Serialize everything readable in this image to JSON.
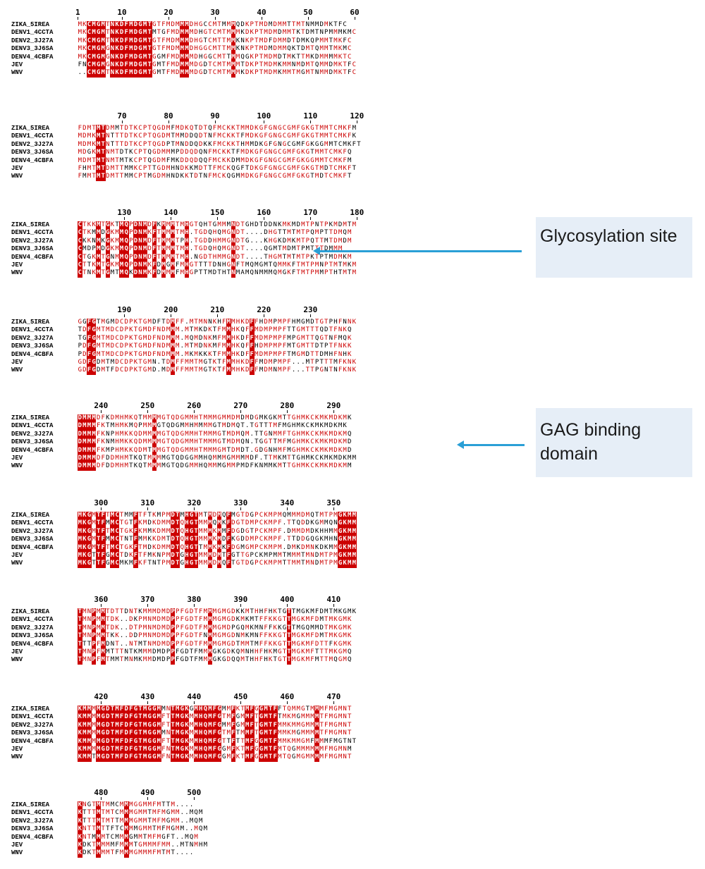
{
  "names": [
    "ZIKA_5IREA",
    "DENV1_4CCTA",
    "DENV2_3J27A",
    "DENV3_3J6SA",
    "DENV4_4CBFA",
    "JEV",
    "WNV"
  ],
  "blocks": [
    {
      "ticks": [
        1,
        10,
        20,
        30,
        40,
        50,
        60
      ],
      "start": 1,
      "rows": [
        "MKCMGMTNKDFMDGMTGTFMDMMMDHGCCMTMMMQDKPTMDMDMMTTMTNMMDMKTFC",
        "MKCMGMTNKDFMDGMTMTGFMDMMMDHGTCMTMMMKDKPTMDMDMMTKTDMTNPMMMKMC",
        "MKCMGMTNKDFMDGMTGTFMDMMMDHGTCMTTMMKNKPTMDFDMMDTDMKQPMMTMKFC",
        "MKCMGMGNKDFMDGMTGTFMDMMMDHGGCMTTMMKNKPTMDMDMMQKTDMTQMMTMKMC",
        "MKCMGMGNKDFMDGMTGGMFMDMMMDHGGCMTTMMQGKPTMDMDTMKTTMKDMMMMKTC",
        "FNCMGMGNKDFMDGMTGMTFMDMMMDGDTCMTMMMTDKPTMDMKMMNMDMTQMMDMKTFC",
        "..CMGMTNKDFMDGMTGMTFMDMMMDGDTCMTMMMKDKPTMDMKMMTMGMTNMMDMKTFC"
      ]
    },
    {
      "ticks": [
        70,
        80,
        90,
        100,
        110,
        120
      ],
      "start": 61,
      "rows": [
        "FDMTMTDMMTDTKCPTQGDMFMDKQTDTQFMCKKTMMDKGFGNGCGMFGKGTMMTCMKFM",
        "MDMKMTNTTTDTKCPTQGDMTMMDDQDTNFMCKKTFMDKGFGNGCGMFGKGTMMTCMKFK",
        "MDMKMTNTTTDTKCPTQGDPTMNDDQDKKFMCKKTHMMDKGFGNGCGMFGKGGMMTCMKFT",
        "MDGKMTNMTDTKCPTQGDMMMPDDQDQNFMCKKTFMDKGFGNGCGMFGKGTMMTCMKFQ",
        "MDMTMTNMTMTKCPTQGDMFMKDDQDQQFMCKKDMMDKGFGNGCGMFGKGGMMTCMKFM",
        "FHMTMTDMTTMMKCPTTGDMHNDKKMDTTFMCKQGFTDKGFGNGCGMFGKGTMDTCMKFT",
        "FMMTMTDMTTMMCPTMGDMHNDKKTDTNFMCKQGMMDKGFGNGCGMFGKGTMDTCMKFT"
      ]
    },
    {
      "ticks": [
        130,
        140,
        150,
        160,
        170,
        180
      ],
      "start": 121,
      "rows": [
        "CTKKMTGKTMQPDNMDFKMMMTMHGTQHTGMMMNDTGHDTDDNKMKMDMTPNTPKMDMTM",
        "CTKMMDGKMMQPDNMKFTMMMTMH.TGDQHQMGNDT....DHGTTMTMTPQMPTTDMQM",
        "CKKNMKGKMMQPDNMDFTMMMTPH.TGDDHMMGNDTG...KHGKDMKMTPQTTMTDMDM",
        "CMDPMDGKMMQPDNMDFTMMMTMH.TGDQHQMGNDT....QGMTMDMTPMTTTDMMM",
        "CTGKMTGNMMQPDNMDFTMMMTMH.NGDTHMMGNDT....THGMTMTMTPKTPTMDMKM",
        "CTTKMTGKMMQPDNMKFDMGMFMHGTTTTDNHGNFTMQMGMTQMMKFTMTPMNPTMTMKM",
        "CTNKMTGMTMQKDNMKFDMMMFMHGPTTMDTHTNMAMQNMMMQMGKFTMTPMMPTHTMTM"
      ]
    },
    {
      "ticks": [
        190,
        200,
        210,
        220,
        230
      ],
      "start": 181,
      "rows": [
        "GGFGTMGMDCDPKTGMDFTDMFF.MTMNNKHFMMHKDFFHDMPMPFHMGMDTGTPHFNNK",
        "TDFGMTMDCDPKTGMDFNDMMM.MTMKDKTFMMHKQFFMDMPMPFTTGMTTTQDTFNKQ",
        "TGFGMTMDCDPKTGMDFNDMMM.MQMDNKMFMMHKDFFMDMPMPFMPGMTTQGTNFMQK",
        "PDFGMTMDCDPKTGMDFNDMMM.MTMDNKMFMMHKQFFHDMPMPFMTGMTTDTPTFNKK",
        "PDFGMTMDCDPKTGMDFNDMMM.MKMKKKTFMMHKDFFMDMPMPFTMGMDTTDMHFNHK",
        "GDFGDMTMDCDPKTGMN.TDMFFMMTMGTKTFMMHKDFFMDMPMPF...MTPTTTMFKNK",
        "GDFGDMTFDCDPKTGMD.MDMFFMMTMGTKTFMMHKDFFMDMNMPF...TTPGNTNFKNK"
      ]
    },
    {
      "ticks": [
        240,
        250,
        260,
        270,
        280,
        290
      ],
      "start": 236,
      "rows": [
        "DMMMDFKDMHMKQTMMMMGTQDGMMHTMMMGMMDMDMDGMKGKMTTGHMKCKMKMDKMK",
        "DMMMFKTMHMKMQPMMMGTQDGMMHMMMMGTMDMQT.TGTTTMFMGHMKCKMKMDKMK",
        "DMMMFKNPHMKKQDMMMMGTQDGMMHTMMMGTMDMQM.TTGNMMFTGHMKCKMKMDKMQ",
        "DMMMFKNMHMKKQDMMMMGTQDGMMHTMMMGTMDMQN.TGGTTMFMGHMKCKMKMDKMD",
        "DMMMFKMPHMKKQDMTMMGTQDGMMHTMMMGMTDMDT.GDGNHMFMGHMKCKMKMDKMD",
        "DMMMDFDDMHMTKQTMMMMGTQDGGMMHQMMMGMMMMDF.TTMKMTTGHMKCKMKMDKMM",
        "DMMMDFDDMHMTKQTMMMMGTQDGMMHQMMMGMMPMDFKNMMKMTTGHMKCKMKMDKMM"
      ]
    },
    {
      "ticks": [
        300,
        310,
        320,
        330,
        340,
        350
      ],
      "start": 296,
      "rows": [
        "MKGMTFTMCTMMFTFTKMPMDTMHGTMTMDMQFMGTDGPCKMPMQMMMDMQTMTPMGKMM",
        "MKGMTFMMCTGTFKMDKDMMDTQHGTMMMQMKFDGTDMPCKMPF.TTQDDKGMMQNGKMM",
        "MKGMTFTMCTGKFKMMKDMMDTQHGTMMMKMMFDGDGTPCKMPF.DMMDMDKHHMMGKMM",
        "MKGMTFMMCTNTFMMKKDMTDTQHGTMMMKMDFKGDDMPCKMPF.TTDDGQGKMHNGKMM",
        "MKGMTFTMCTGKFTMDKDMMDTQHGTTMMKMKFDGMGMPCKMPM.DMKDMNKDKMMGKMM",
        "MKGTTFGMCTDKFTFMKNPMDTGHGTMMMDMTFGTTGPCKMPMMTMMMTMNDMTPMGKMM",
        "MKGTTFGMCMKMFKFTNTPMDTGHGTMMMDMQFTGTDGPCKMPMTTMMTMNDMTPMGKMM"
      ]
    },
    {
      "ticks": [
        360,
        370,
        380,
        390,
        400,
        410
      ],
      "start": 356,
      "rows": [
        "TMNPMMTDTTDNTKMMMDMDPPFGDTFMMMGMGDKKMTHHFHKTGTTMGKMFDMTMKGMK",
        "TMNPMMTDK..DKPMNMDMDPPFGDTFMMMGMGDKMKMTFFKKGTTMGKMFDMTMKGMK",
        "TMNPMMTDK..DTPMNMDMDPPFGDTFMMMGMDPGQMKMNFFKKGTTMGQMMDTMKGMK",
        "TMNPMMTKK..DDPMNMDMDPPFGDTFNMMGMGDNMKMNFFKKGTTMGKMFDMTMKGMK",
        "TTTPFMDNT..NTMTNMDMDPPFGDTFMMMGMGDTMMTMFFKKGTTMGKMFDTTFKGMK",
        "TMNPFMMTTTNTKMMMDMDPPFGDTFMMMGKGDKQMNHHFHKMGTTMGKMFTTTMKGMQ",
        "TMNPFMTMMTMNMKMMDMDPPFGDTFMMMGKGDQQMTHHFHKTGTTMGKMFMTTMQGMQ"
      ]
    },
    {
      "ticks": [
        420,
        430,
        440,
        450,
        460,
        470
      ],
      "start": 416,
      "rows": [
        "KMMMMGDTMFDFGTMGGMMNTMGKGMHQMFGMMFKTMFGGMTFFTQMMGTMMMFMGMNT",
        "KMMMMGDTMFDFGTMGGMFTTMGKMMHQMFGTMFGMMFTGMTFTMKMGMMMMTFMGMNT",
        "KMMMMGDTMFDFGTMGGMFTTMGKMMHQMFGMMFGMMFTGMTFMMKMMGMMMTFMGMNT",
        "KMMMMGDTMFDFGTMGGMMNTMGKMMHQMFGTMFTMMFTGMTFMMKMGMMMMTFMGMNT",
        "KMMMMGDTMFDFGTMGGMFTTMGKMMHQMFGTTFTTMFGGMTFMMKMMGMFMMMFMGTNT",
        "KMMMMGDTMFDFGTMGGMFNTMGKMMHQMFGGMFKTMFGGMTFMTQGMMMMMMFMGMNM",
        "KMMTMGDTMFDFGTMGGMFNTMGKMMHQMFGGMFKTMFGGMTFMTQGMGMMMMFMGMNT"
      ]
    },
    {
      "ticks": [
        480,
        490,
        500
      ],
      "start": 476,
      "rows": [
        "KNGTMTMMCMMMGGMMFMTTM....",
        "KTTTMTMTCMMMGMMTMFMGMM..MQM",
        "KTTTMTMTTMMMGMMTMFMGMM..MQM",
        "KNTTMTTFTCMMMGMMTMFMGMM..MQM",
        "KNTMMMTCMMMGMMTMFMGFT..MQM",
        "KDKTMMMMFMMMTGMMMFMM..MTNMHM",
        "KDKTMMMTFMMMGMMMFMTMT...."
      ]
    }
  ],
  "callouts": [
    {
      "label": "Glycosylation site"
    },
    {
      "label": "GAG binding domain"
    }
  ],
  "colors": {
    "conserved_bg": "#cc0000",
    "similar_text": "#cc0000",
    "callout_bg": "#e6eef7",
    "arrow": "#2a9fd6"
  }
}
